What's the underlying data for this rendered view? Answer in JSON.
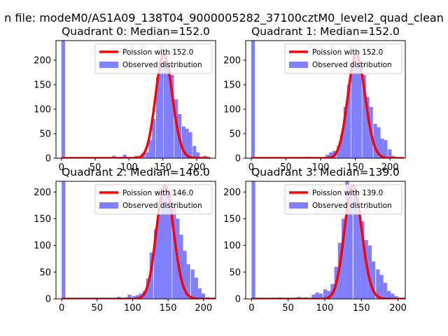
{
  "figure": {
    "suptitle": "n file: modeM0/AS1A09_138T04_9000005282_37100cztM0_level2_quad_clean"
  },
  "colors": {
    "histogram": "#7f7fff",
    "poisson": "#ff0000",
    "axes": "#000000",
    "legend_border": "#cccccc"
  },
  "chart_data": [
    {
      "type": "bar",
      "title": "Quadrant 0: Median=152.0",
      "xlabel": "",
      "ylabel": "",
      "xlim": [
        -8,
        228
      ],
      "ylim": [
        0,
        240
      ],
      "xticks": [
        0,
        50,
        100,
        150,
        200
      ],
      "xtick_labels": [
        "0",
        "50",
        "100",
        "150",
        "200"
      ],
      "yticks": [
        0,
        50,
        100,
        150,
        200
      ],
      "legend_position": "top-right",
      "series": [
        {
          "name": "Poission with 152.0",
          "kind": "poisson",
          "lambda": 152.0,
          "scale": 212
        },
        {
          "name": "Observed distribution",
          "kind": "histogram",
          "bin_width": 5.4,
          "bins": [
            {
              "x": 0,
              "y": 240
            },
            {
              "x": 75,
              "y": 5
            },
            {
              "x": 86,
              "y": 3
            },
            {
              "x": 91,
              "y": 7
            },
            {
              "x": 102,
              "y": 2
            },
            {
              "x": 108,
              "y": 5
            },
            {
              "x": 118,
              "y": 10
            },
            {
              "x": 124,
              "y": 12
            },
            {
              "x": 129,
              "y": 37
            },
            {
              "x": 134,
              "y": 80
            },
            {
              "x": 140,
              "y": 165
            },
            {
              "x": 145,
              "y": 205
            },
            {
              "x": 151,
              "y": 215
            },
            {
              "x": 156,
              "y": 190
            },
            {
              "x": 161,
              "y": 170
            },
            {
              "x": 167,
              "y": 120
            },
            {
              "x": 172,
              "y": 90
            },
            {
              "x": 178,
              "y": 65
            },
            {
              "x": 183,
              "y": 60
            },
            {
              "x": 188,
              "y": 53
            },
            {
              "x": 194,
              "y": 25
            },
            {
              "x": 199,
              "y": 12
            },
            {
              "x": 205,
              "y": 3
            },
            {
              "x": 210,
              "y": 5
            }
          ]
        }
      ]
    },
    {
      "type": "bar",
      "title": "Quadrant 1: Median=152.0",
      "xlabel": "",
      "ylabel": "",
      "xlim": [
        -8,
        222
      ],
      "ylim": [
        0,
        240
      ],
      "xticks": [
        0,
        50,
        100,
        150,
        200
      ],
      "xtick_labels": [
        "0",
        "50",
        "100",
        "150",
        "200"
      ],
      "yticks": [
        0,
        50,
        100,
        150,
        200
      ],
      "legend_position": "top-right",
      "series": [
        {
          "name": "Poission with 152.0",
          "kind": "poisson",
          "lambda": 152.0,
          "scale": 212
        },
        {
          "name": "Observed distribution",
          "kind": "histogram",
          "bin_width": 5.3,
          "bins": [
            {
              "x": 0,
              "y": 240
            },
            {
              "x": 80,
              "y": 3
            },
            {
              "x": 96,
              "y": 2
            },
            {
              "x": 107,
              "y": 7
            },
            {
              "x": 112,
              "y": 12
            },
            {
              "x": 117,
              "y": 15
            },
            {
              "x": 123,
              "y": 25
            },
            {
              "x": 128,
              "y": 48
            },
            {
              "x": 133,
              "y": 105
            },
            {
              "x": 138,
              "y": 150
            },
            {
              "x": 144,
              "y": 185
            },
            {
              "x": 149,
              "y": 203
            },
            {
              "x": 154,
              "y": 190
            },
            {
              "x": 160,
              "y": 170
            },
            {
              "x": 165,
              "y": 125
            },
            {
              "x": 170,
              "y": 105
            },
            {
              "x": 176,
              "y": 70
            },
            {
              "x": 181,
              "y": 63
            },
            {
              "x": 186,
              "y": 40
            },
            {
              "x": 191,
              "y": 37
            },
            {
              "x": 197,
              "y": 18
            },
            {
              "x": 202,
              "y": 5
            },
            {
              "x": 207,
              "y": 2
            }
          ]
        }
      ]
    },
    {
      "type": "bar",
      "title": "Quadrant 2: Median=146.0",
      "xlabel": "",
      "ylabel": "",
      "xlim": [
        -8,
        217
      ],
      "ylim": [
        0,
        220
      ],
      "xticks": [
        0,
        50,
        100,
        150,
        200
      ],
      "xtick_labels": [
        "0",
        "50",
        "100",
        "150",
        "200"
      ],
      "yticks": [
        0,
        50,
        100,
        150,
        200
      ],
      "legend_position": "top-right",
      "series": [
        {
          "name": "Poission with 146.0",
          "kind": "poisson",
          "lambda": 146.0,
          "scale": 212
        },
        {
          "name": "Observed distribution",
          "kind": "histogram",
          "bin_width": 5.2,
          "bins": [
            {
              "x": 0,
              "y": 220
            },
            {
              "x": 78,
              "y": 4
            },
            {
              "x": 88,
              "y": 3
            },
            {
              "x": 93,
              "y": 8
            },
            {
              "x": 99,
              "y": 5
            },
            {
              "x": 104,
              "y": 7
            },
            {
              "x": 109,
              "y": 10
            },
            {
              "x": 114,
              "y": 15
            },
            {
              "x": 119,
              "y": 38
            },
            {
              "x": 124,
              "y": 87
            },
            {
              "x": 130,
              "y": 130
            },
            {
              "x": 135,
              "y": 160
            },
            {
              "x": 140,
              "y": 195
            },
            {
              "x": 145,
              "y": 210
            },
            {
              "x": 150,
              "y": 205
            },
            {
              "x": 156,
              "y": 180
            },
            {
              "x": 161,
              "y": 150
            },
            {
              "x": 166,
              "y": 120
            },
            {
              "x": 171,
              "y": 90
            },
            {
              "x": 176,
              "y": 65
            },
            {
              "x": 182,
              "y": 55
            },
            {
              "x": 187,
              "y": 40
            },
            {
              "x": 192,
              "y": 20
            },
            {
              "x": 197,
              "y": 10
            },
            {
              "x": 203,
              "y": 3
            }
          ]
        }
      ]
    },
    {
      "type": "bar",
      "title": "Quadrant 3: Median=139.0",
      "xlabel": "",
      "ylabel": "",
      "xlim": [
        -8,
        210
      ],
      "ylim": [
        0,
        220
      ],
      "xticks": [
        0,
        50,
        100,
        150,
        200
      ],
      "xtick_labels": [
        "0",
        "50",
        "100",
        "150",
        "200"
      ],
      "yticks": [
        0,
        50,
        100,
        150,
        200
      ],
      "legend_position": "top-right",
      "series": [
        {
          "name": "Poission with 139.0",
          "kind": "poisson",
          "lambda": 139.0,
          "scale": 212
        },
        {
          "name": "Observed distribution",
          "kind": "histogram",
          "bin_width": 5.1,
          "bins": [
            {
              "x": 0,
              "y": 220
            },
            {
              "x": 36,
              "y": 3
            },
            {
              "x": 51,
              "y": 2
            },
            {
              "x": 62,
              "y": 4
            },
            {
              "x": 72,
              "y": 3
            },
            {
              "x": 82,
              "y": 8
            },
            {
              "x": 87,
              "y": 12
            },
            {
              "x": 92,
              "y": 10
            },
            {
              "x": 98,
              "y": 18
            },
            {
              "x": 103,
              "y": 15
            },
            {
              "x": 108,
              "y": 28
            },
            {
              "x": 113,
              "y": 60
            },
            {
              "x": 118,
              "y": 105
            },
            {
              "x": 123,
              "y": 150
            },
            {
              "x": 128,
              "y": 220
            },
            {
              "x": 133,
              "y": 210
            },
            {
              "x": 139,
              "y": 205
            },
            {
              "x": 144,
              "y": 160
            },
            {
              "x": 149,
              "y": 145
            },
            {
              "x": 154,
              "y": 110
            },
            {
              "x": 159,
              "y": 100
            },
            {
              "x": 164,
              "y": 70
            },
            {
              "x": 170,
              "y": 55
            },
            {
              "x": 175,
              "y": 45
            },
            {
              "x": 180,
              "y": 30
            },
            {
              "x": 185,
              "y": 15
            },
            {
              "x": 190,
              "y": 10
            },
            {
              "x": 195,
              "y": 5
            }
          ]
        }
      ]
    }
  ]
}
